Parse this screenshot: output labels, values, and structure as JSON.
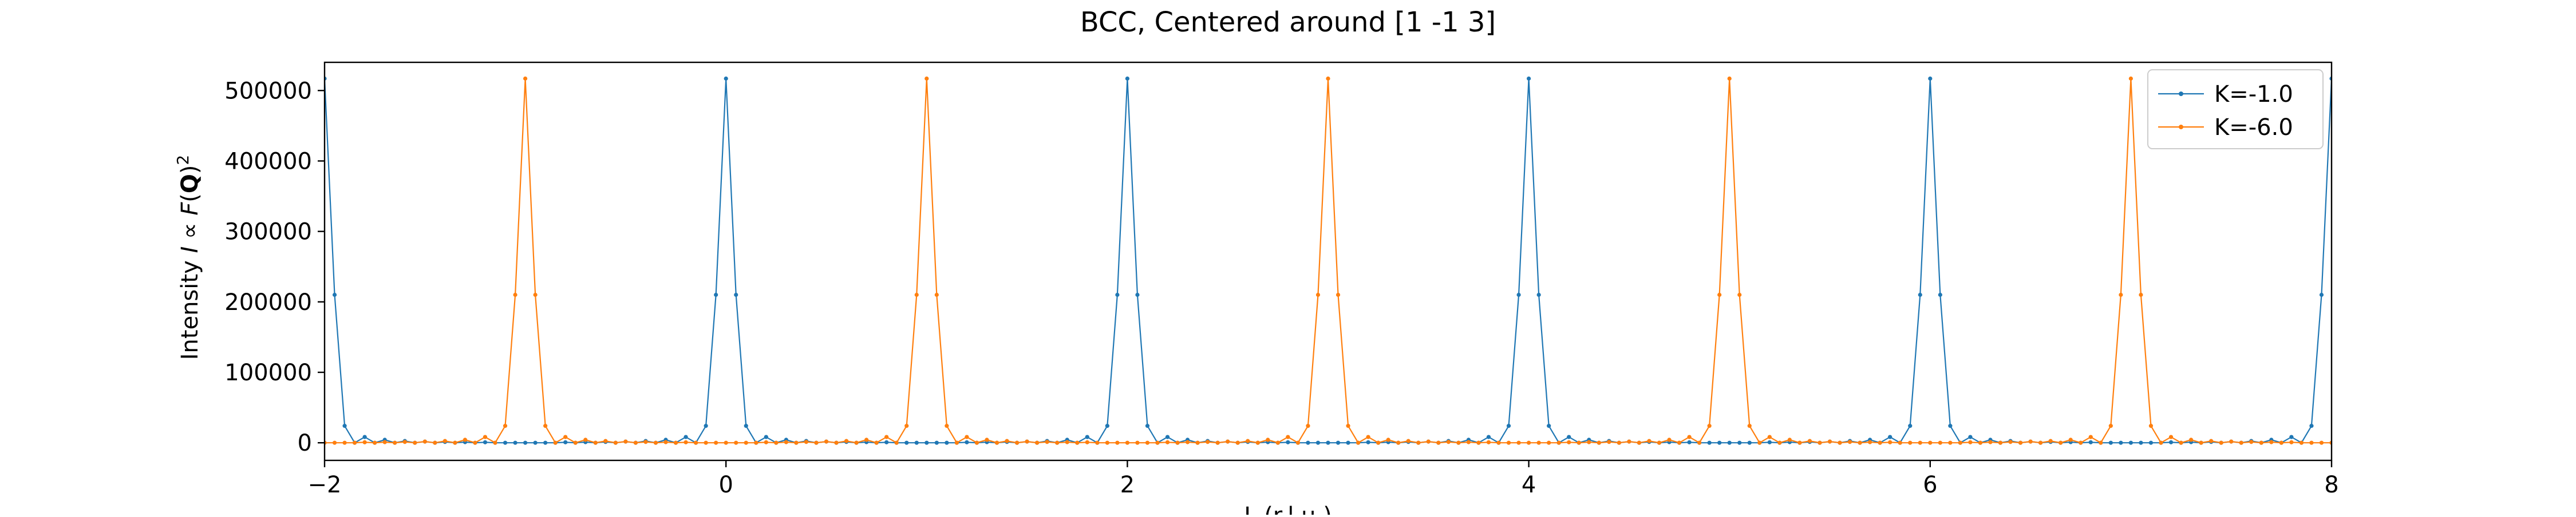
{
  "chart_data": {
    "type": "line",
    "title": "BCC, Centered around [1 -1 3]",
    "xlabel": "L (r.l.u.)",
    "ylabel": "Intensity I ∝ F(Q)²",
    "ylabel_parts": {
      "prefix": "Intensity ",
      "italic_I": "I",
      "propto": " ∝ ",
      "italic_F": "F",
      "open": "(",
      "bold_Q": "Q",
      "close": ")",
      "sup": "2"
    },
    "xlim": [
      -2,
      8
    ],
    "ylim": [
      -25000,
      540000
    ],
    "x_ticks": [
      -2,
      0,
      2,
      4,
      6,
      8
    ],
    "x_tick_labels": [
      "−2",
      "0",
      "2",
      "4",
      "6",
      "8"
    ],
    "y_ticks": [
      0,
      100000,
      200000,
      300000,
      400000,
      500000
    ],
    "y_tick_labels": [
      "0",
      "100000",
      "200000",
      "300000",
      "400000",
      "500000"
    ],
    "grid": false,
    "legend_position": "top-right",
    "peak_value": 516961,
    "shoulder_value": 210000,
    "side_lobes": [
      24000,
      8200,
      4200,
      2500,
      1700,
      1200,
      900,
      700
    ],
    "series": [
      {
        "name": "K=-1.0",
        "color": "#1f77b4",
        "peak_L": [
          -2,
          0,
          2,
          4,
          6,
          8
        ]
      },
      {
        "name": "K=-6.0",
        "color": "#ff7f0e",
        "peak_L": [
          -1,
          1,
          3,
          5,
          7
        ]
      }
    ]
  }
}
